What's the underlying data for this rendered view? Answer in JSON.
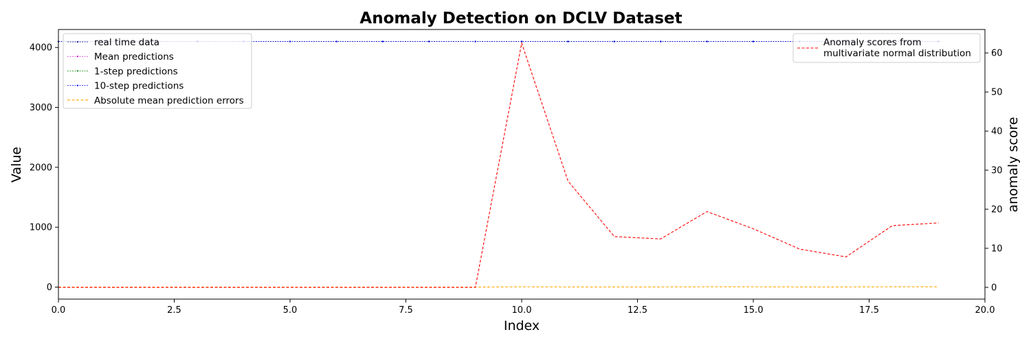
{
  "chart_data": {
    "type": "line",
    "title": "Anomaly Detection on DCLV Dataset",
    "xlabel": "Index",
    "ylabel": "Value",
    "y2label": "anomaly score",
    "xlim": [
      0,
      20
    ],
    "ylim": [
      -200,
      4300
    ],
    "y2lim": [
      -3,
      66
    ],
    "grid": false,
    "xticks": [
      "0.0",
      "2.5",
      "5.0",
      "7.5",
      "10.0",
      "12.5",
      "15.0",
      "17.5",
      "20.0"
    ],
    "xtick_values": [
      0,
      2.5,
      5,
      7.5,
      10,
      12.5,
      15,
      17.5,
      20
    ],
    "yticks": [
      "0",
      "1000",
      "2000",
      "3000",
      "4000"
    ],
    "ytick_values": [
      0,
      1000,
      2000,
      3000,
      4000
    ],
    "y2ticks": [
      "0",
      "10",
      "20",
      "30",
      "40",
      "50",
      "60"
    ],
    "y2tick_values": [
      0,
      10,
      20,
      30,
      40,
      50,
      60
    ],
    "legend_left": {
      "placement": "top-left",
      "entries": [
        {
          "label": "real time data",
          "series": "real"
        },
        {
          "label": "Mean predictions",
          "series": "mean"
        },
        {
          "label": "1-step predictions",
          "series": "step1"
        },
        {
          "label": "10-step predictions",
          "series": "step10"
        },
        {
          "label": "Absolute mean prediction errors",
          "series": "error"
        }
      ]
    },
    "legend_right": {
      "placement": "top-right",
      "entries": [
        {
          "label_lines": [
            "Anomaly scores from",
            "multivariate normal distribution"
          ],
          "series": "anomaly"
        }
      ]
    },
    "series": [
      {
        "key": "real",
        "axis": "left",
        "color": "#000080",
        "style": "dashdot-marker",
        "marker": true,
        "x": [
          0,
          1,
          2,
          3,
          4,
          5,
          6,
          7,
          8,
          9,
          10,
          11,
          12,
          13,
          14,
          15,
          16,
          17,
          18,
          19
        ],
        "values": [
          4100,
          4100,
          4100,
          4100,
          4100,
          4100,
          4100,
          4100,
          4100,
          4100,
          4100,
          4100,
          4100,
          4100,
          4100,
          4100,
          4100,
          4100,
          4100,
          4100
        ]
      },
      {
        "key": "mean",
        "axis": "left",
        "color": "#bf00bf",
        "style": "dashdot-marker",
        "marker": true,
        "x": [
          0,
          1,
          2,
          3,
          4,
          5,
          6,
          7,
          8,
          9,
          10,
          11,
          12,
          13,
          14,
          15,
          16,
          17,
          18,
          19
        ],
        "values": [
          4100,
          4100,
          4100,
          4100,
          4100,
          4100,
          4100,
          4100,
          4100,
          4100,
          4100,
          4100,
          4100,
          4100,
          4100,
          4100,
          4100,
          4100,
          4100,
          4100
        ]
      },
      {
        "key": "step1",
        "axis": "left",
        "color": "#008000",
        "style": "dashdot-marker",
        "marker": true,
        "x": [
          0,
          1,
          2,
          3,
          4,
          5,
          6,
          7,
          8,
          9,
          10,
          11,
          12,
          13,
          14,
          15,
          16,
          17,
          18,
          19
        ],
        "values": [
          4100,
          4100,
          4100,
          4100,
          4100,
          4100,
          4100,
          4100,
          4100,
          4100,
          4100,
          4100,
          4100,
          4100,
          4100,
          4100,
          4100,
          4100,
          4100,
          4100
        ]
      },
      {
        "key": "step10",
        "axis": "left",
        "color": "#0000ff",
        "style": "dashdot-marker",
        "marker": true,
        "x": [
          0,
          1,
          2,
          3,
          4,
          5,
          6,
          7,
          8,
          9,
          10,
          11,
          12,
          13,
          14,
          15,
          16,
          17,
          18,
          19
        ],
        "values": [
          4100,
          4100,
          4100,
          4100,
          4100,
          4100,
          4100,
          4100,
          4100,
          4100,
          4100,
          4100,
          4100,
          4100,
          4100,
          4100,
          4100,
          4100,
          4100,
          4100
        ]
      },
      {
        "key": "error",
        "axis": "left",
        "color": "#ffa500",
        "style": "dashed",
        "marker": false,
        "x": [
          0,
          1,
          2,
          3,
          4,
          5,
          6,
          7,
          8,
          9,
          10,
          11,
          12,
          13,
          14,
          15,
          16,
          17,
          18,
          19
        ],
        "values": [
          0,
          0,
          0,
          0,
          0,
          0,
          0,
          0,
          0,
          0,
          5,
          3,
          3,
          3,
          5,
          5,
          3,
          3,
          5,
          5
        ]
      },
      {
        "key": "anomaly",
        "axis": "right",
        "color": "#ff0000",
        "style": "dashed",
        "marker": false,
        "x": [
          0,
          1,
          2,
          3,
          4,
          5,
          6,
          7,
          8,
          9,
          10,
          11,
          12,
          13,
          14,
          15,
          16,
          17,
          18,
          19
        ],
        "values": [
          0,
          0,
          0,
          0,
          0,
          0,
          0,
          0,
          0,
          0,
          62.5,
          27.2,
          13.0,
          12.4,
          19.4,
          15.0,
          9.8,
          7.8,
          15.8,
          16.5
        ]
      }
    ]
  }
}
